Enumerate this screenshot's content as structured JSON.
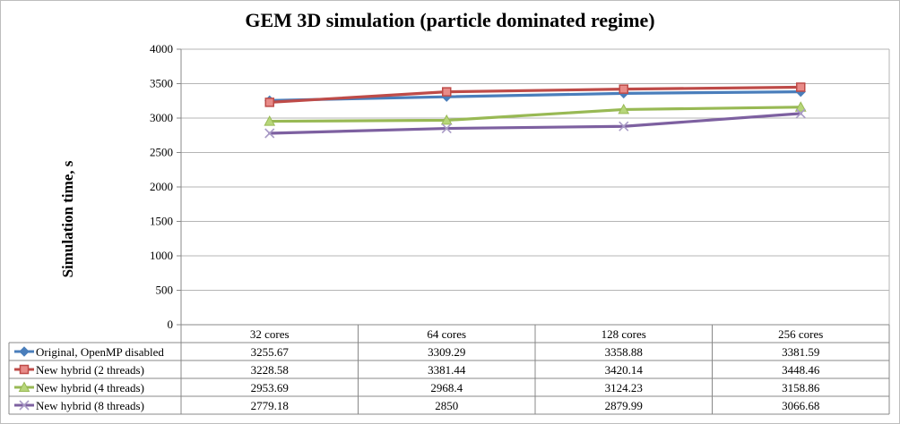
{
  "chart_data": {
    "type": "line",
    "title": "GEM 3D simulation (particle dominated regime)",
    "xlabel": "",
    "ylabel": "Simulation time, s",
    "ylim": [
      0,
      4000
    ],
    "yticks": [
      0,
      500,
      1000,
      1500,
      2000,
      2500,
      3000,
      3500,
      4000
    ],
    "categories": [
      "32 cores",
      "64 cores",
      "128 cores",
      "256 cores"
    ],
    "grid": true,
    "legend": "data-table-left",
    "series": [
      {
        "name": "Original, OpenMP disabled",
        "marker": "diamond",
        "color": "#4a7ebb",
        "values": [
          3255.67,
          3309.29,
          3358.88,
          3381.59
        ],
        "labels": [
          "3255.67",
          "3309.29",
          "3358.88",
          "3381.59"
        ]
      },
      {
        "name": "New hybrid (2 threads)",
        "marker": "square",
        "color": "#be4b48",
        "values": [
          3228.58,
          3381.44,
          3420.14,
          3448.46
        ],
        "labels": [
          "3228.58",
          "3381.44",
          "3420.14",
          "3448.46"
        ]
      },
      {
        "name": "New hybrid (4 threads)",
        "marker": "triangle",
        "color": "#98b954",
        "values": [
          2953.69,
          2968.4,
          3124.23,
          3158.86
        ],
        "labels": [
          "2953.69",
          "2968.4",
          "3124.23",
          "3158.86"
        ]
      },
      {
        "name": "New hybrid (8 threads)",
        "marker": "x",
        "color": "#7d60a0",
        "values": [
          2779.18,
          2850,
          2879.99,
          3066.68
        ],
        "labels": [
          "2779.18",
          "2850",
          "2879.99",
          "3066.68"
        ]
      }
    ]
  }
}
